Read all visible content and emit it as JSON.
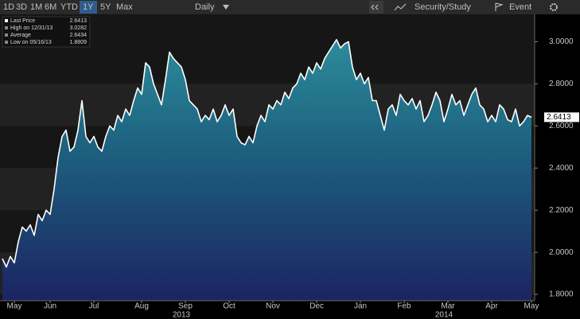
{
  "toolbar": {
    "ranges": [
      "1D",
      "3D",
      "1M",
      "6M",
      "YTD",
      "1Y",
      "5Y",
      "Max"
    ],
    "selected_index": 5,
    "interval": "Daily",
    "study": "Security/Study",
    "event": "Event"
  },
  "chart_data": {
    "type": "area",
    "color": "#ffffff",
    "legend": [
      {
        "label": "Last Price",
        "value": 2.6413
      },
      {
        "label": "High on 12/31/13",
        "value": 3.0282
      },
      {
        "label": "Average",
        "value": 2.6434
      },
      {
        "label": "Low on 05/16/13",
        "value": 1.8809
      }
    ],
    "values": [
      1.97,
      1.93,
      1.98,
      1.95,
      2.05,
      2.12,
      2.1,
      2.13,
      2.08,
      2.18,
      2.15,
      2.2,
      2.18,
      2.3,
      2.45,
      2.55,
      2.58,
      2.48,
      2.5,
      2.58,
      2.72,
      2.55,
      2.52,
      2.55,
      2.5,
      2.48,
      2.55,
      2.6,
      2.58,
      2.65,
      2.62,
      2.68,
      2.65,
      2.72,
      2.78,
      2.75,
      2.9,
      2.88,
      2.8,
      2.75,
      2.7,
      2.82,
      2.95,
      2.92,
      2.9,
      2.88,
      2.82,
      2.72,
      2.7,
      2.68,
      2.62,
      2.65,
      2.63,
      2.68,
      2.62,
      2.65,
      2.7,
      2.65,
      2.68,
      2.55,
      2.52,
      2.51,
      2.55,
      2.52,
      2.6,
      2.65,
      2.62,
      2.7,
      2.68,
      2.72,
      2.7,
      2.76,
      2.73,
      2.78,
      2.8,
      2.85,
      2.82,
      2.88,
      2.85,
      2.9,
      2.87,
      2.92,
      2.95,
      2.98,
      3.01,
      2.97,
      2.99,
      3.0,
      2.88,
      2.82,
      2.85,
      2.8,
      2.83,
      2.72,
      2.72,
      2.65,
      2.58,
      2.68,
      2.7,
      2.65,
      2.75,
      2.72,
      2.7,
      2.73,
      2.68,
      2.72,
      2.62,
      2.65,
      2.7,
      2.76,
      2.72,
      2.62,
      2.68,
      2.75,
      2.7,
      2.72,
      2.65,
      2.7,
      2.75,
      2.78,
      2.7,
      2.68,
      2.62,
      2.65,
      2.62,
      2.7,
      2.68,
      2.63,
      2.62,
      2.68,
      2.6,
      2.62,
      2.65,
      2.6413
    ],
    "xlim": [
      0,
      133
    ],
    "xticks": [
      {
        "value": 3,
        "label": "May"
      },
      {
        "value": 12,
        "label": "Jun"
      },
      {
        "value": 23,
        "label": "Jul"
      },
      {
        "value": 35,
        "label": "Aug"
      },
      {
        "value": 46,
        "label": "Sep"
      },
      {
        "value": 57,
        "label": "Oct"
      },
      {
        "value": 68,
        "label": "Nov"
      },
      {
        "value": 79,
        "label": "Dec"
      },
      {
        "value": 90,
        "label": "Jan"
      },
      {
        "value": 101,
        "label": "Feb"
      },
      {
        "value": 112,
        "label": "Mar"
      },
      {
        "value": 123,
        "label": "Apr"
      },
      {
        "value": 133,
        "label": "May"
      }
    ],
    "year_labels": [
      {
        "value": 45,
        "label": "2013"
      },
      {
        "value": 111,
        "label": "2014"
      }
    ],
    "ylim": [
      1.77,
      3.13
    ],
    "yticks": [
      {
        "value": 1.8,
        "label": "1.8000"
      },
      {
        "value": 2.0,
        "label": "2.0000"
      },
      {
        "value": 2.2,
        "label": "2.2000"
      },
      {
        "value": 2.4,
        "label": "2.4000"
      },
      {
        "value": 2.6,
        "label": "2.6000"
      },
      {
        "value": 2.8,
        "label": "2.8000"
      },
      {
        "value": 3.0,
        "label": "3.0000"
      }
    ]
  }
}
